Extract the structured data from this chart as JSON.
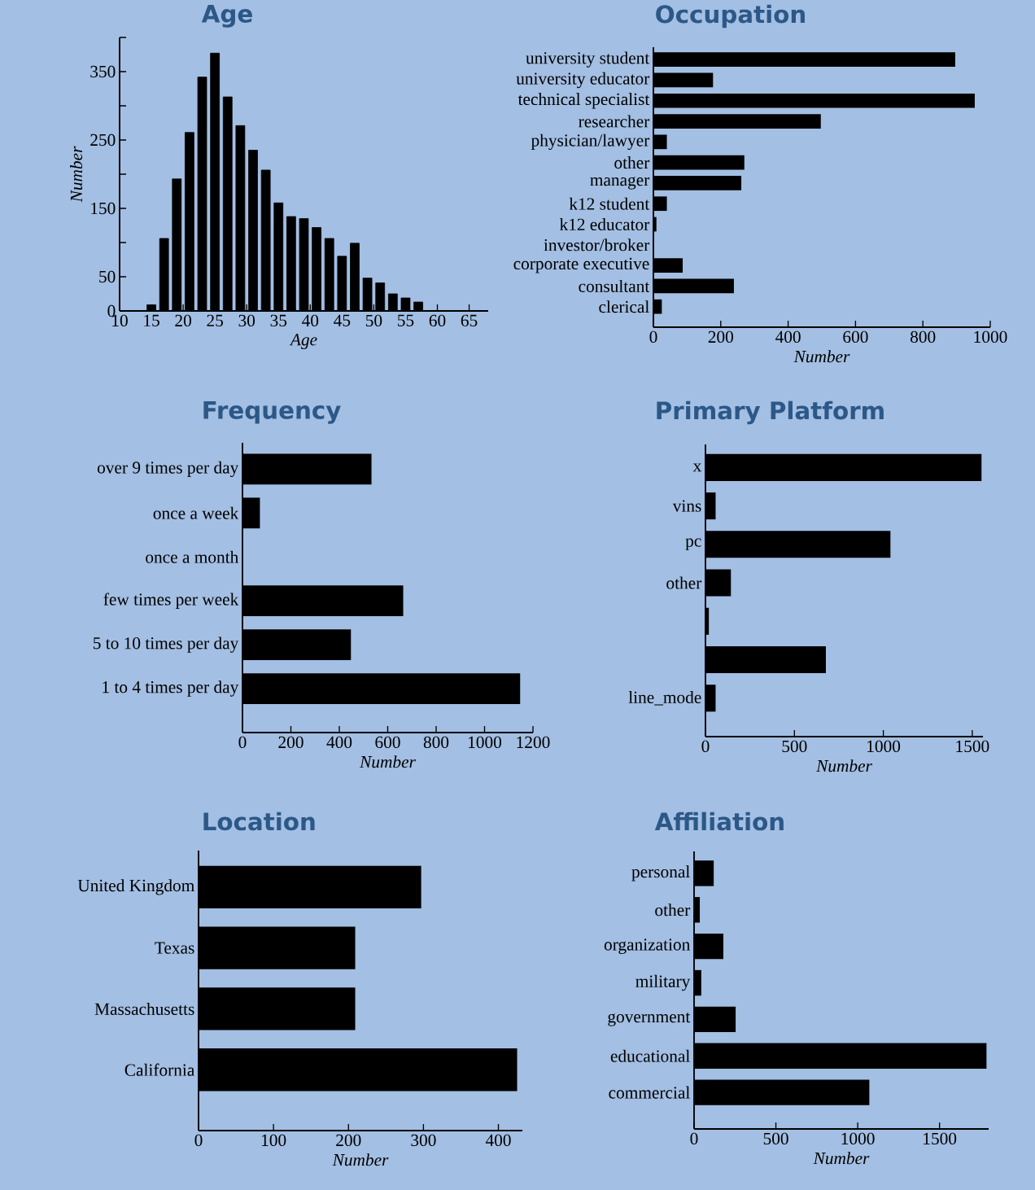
{
  "chart_data": [
    {
      "type": "histogram",
      "title": "Age",
      "xlabel": "Age",
      "ylabel": "Number",
      "color": "#000000",
      "bins": [
        12,
        14,
        16,
        18,
        20,
        22,
        24,
        26,
        28,
        30,
        32,
        34,
        36,
        38,
        40,
        42,
        44,
        46,
        48,
        50,
        52,
        54,
        56,
        58,
        60,
        62,
        64
      ],
      "values": [
        0,
        9,
        106,
        193,
        261,
        342,
        377,
        313,
        271,
        235,
        206,
        158,
        138,
        135,
        122,
        106,
        80,
        99,
        48,
        41,
        25,
        19,
        13,
        0,
        0,
        0
      ],
      "xlim": [
        10,
        68
      ],
      "xticks": [
        10,
        15,
        20,
        25,
        30,
        35,
        40,
        45,
        50,
        55,
        60,
        65
      ],
      "ylim": [
        0,
        400
      ],
      "yticks": [
        0,
        50,
        {
          "value": 100,
          "label": null
        },
        150,
        {
          "value": 200,
          "label": null
        },
        250,
        {
          "value": 300,
          "label": null
        },
        350,
        {
          "value": 400,
          "label": null
        }
      ]
    },
    {
      "type": "bar",
      "orientation": "horizontal",
      "title": "Occupation",
      "xlabel": "Number",
      "color": "#000000",
      "categories": [
        "university student",
        "university educator",
        "technical specialist",
        "researcher",
        "physician/lawyer",
        "other",
        "manager",
        "k12 student",
        "k12 educator",
        "investor/broker",
        "corporate executive",
        "consultant",
        "clerical"
      ],
      "values": [
        896,
        177,
        954,
        497,
        40,
        270,
        261,
        40,
        9,
        0,
        87,
        239,
        25
      ],
      "xlim": [
        0,
        1000
      ],
      "xticks": [
        0,
        200,
        400,
        600,
        800,
        1000
      ]
    },
    {
      "type": "bar",
      "orientation": "horizontal",
      "title": "Frequency",
      "xlabel": "Number",
      "color": "#000000",
      "categories": [
        "over 9 times per day",
        "once a week",
        "once a month",
        "few times per week",
        "5 to 10 times per day",
        "1 to 4 times per day"
      ],
      "values": [
        533,
        72,
        0,
        664,
        448,
        1147
      ],
      "xlim": [
        0,
        1200
      ],
      "xticks": [
        0,
        200,
        400,
        600,
        800,
        1000,
        1200
      ]
    },
    {
      "type": "bar",
      "orientation": "horizontal",
      "title": "Primary Platform",
      "xlabel": "Number",
      "color": "#000000",
      "categories": [
        "x",
        "vins",
        "pc",
        "other",
        null,
        null,
        "line_mode"
      ],
      "values": [
        1552,
        57,
        1040,
        143,
        19,
        677,
        57
      ],
      "xlim": [
        0,
        1560
      ],
      "xticks": [
        0,
        500,
        1000,
        1500
      ]
    },
    {
      "type": "bar",
      "orientation": "horizontal",
      "title": "Location",
      "xlabel": "Number",
      "color": "#000000",
      "categories": [
        "United Kingdom",
        "Texas",
        "Massachusetts",
        "California"
      ],
      "values": [
        297,
        209,
        209,
        425
      ],
      "xlim": [
        0,
        432
      ],
      "xticks": [
        0,
        100,
        200,
        300,
        400
      ]
    },
    {
      "type": "bar",
      "orientation": "horizontal",
      "title": "Affiliation",
      "xlabel": "Number",
      "color": "#000000",
      "categories": [
        "personal",
        "other",
        "organization",
        "military",
        "government",
        "educational",
        "commercial"
      ],
      "values": [
        120,
        35,
        179,
        44,
        254,
        1787,
        1071
      ],
      "xlim": [
        0,
        1800
      ],
      "xticks": [
        0,
        500,
        1000,
        1500
      ]
    }
  ]
}
